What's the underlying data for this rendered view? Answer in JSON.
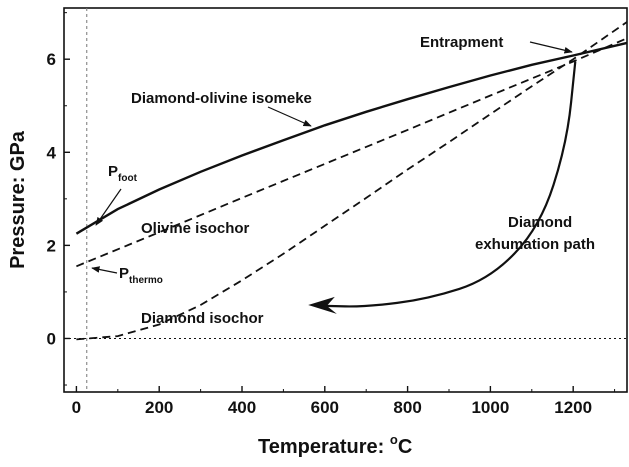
{
  "chart_data": {
    "type": "line",
    "title": "",
    "xlabel": "Temperature: ",
    "xlabel_unit_sup": "o",
    "xlabel_unit": "C",
    "ylabel": "Pressure: GPa",
    "xlim": [
      -30,
      1330
    ],
    "ylim": [
      -1.15,
      7.1
    ],
    "x_ticks": [
      0,
      200,
      400,
      600,
      800,
      1000,
      1200
    ],
    "y_ticks": [
      0,
      2,
      4,
      6
    ],
    "x_tick_labels": [
      "0",
      "200",
      "400",
      "600",
      "800",
      "1000",
      "1200"
    ],
    "y_tick_labels": [
      "0",
      "2",
      "4",
      "6"
    ],
    "grid": false,
    "series": [
      {
        "label": "Diamond-olivine isomeke",
        "style": "solid",
        "x": [
          0,
          100,
          200,
          300,
          400,
          500,
          600,
          700,
          800,
          900,
          1000,
          1100,
          1200,
          1330
        ],
        "y": [
          2.25,
          2.78,
          3.2,
          3.58,
          3.93,
          4.26,
          4.58,
          4.87,
          5.14,
          5.4,
          5.65,
          5.88,
          6.08,
          6.35
        ]
      },
      {
        "label": "Olivine isochor",
        "style": "dashed",
        "x": [
          0,
          200,
          400,
          600,
          800,
          1000,
          1200,
          1330
        ],
        "y": [
          1.55,
          2.28,
          3.02,
          3.75,
          4.48,
          5.22,
          5.95,
          6.45
        ]
      },
      {
        "label": "Diamond isochor",
        "style": "dashed",
        "x": [
          0,
          100,
          200,
          300,
          400,
          500,
          600,
          700,
          800,
          900,
          1000,
          1100,
          1200,
          1330
        ],
        "y": [
          -0.02,
          0.05,
          0.3,
          0.72,
          1.25,
          1.82,
          2.42,
          3.02,
          3.63,
          4.22,
          4.82,
          5.42,
          6.0,
          6.8
        ]
      }
    ],
    "reference_lines": [
      {
        "orientation": "horizontal",
        "value": 0,
        "style": "dotted"
      },
      {
        "orientation": "vertical",
        "value": 25,
        "style": "dashed-thin"
      }
    ],
    "annotations": [
      {
        "text": "Entrapment",
        "at": [
          1210,
          6.1
        ]
      },
      {
        "text": "Diamond-olivine isomeke",
        "at": [
          520,
          4.32
        ]
      },
      {
        "text": "P",
        "sub": "foot",
        "at": [
          30,
          2.55
        ]
      },
      {
        "text": "Olivine isochor",
        "at": [
          210,
          2.5
        ]
      },
      {
        "text": "Diamond",
        "at": [
          1075,
          2.4
        ]
      },
      {
        "text": "exhumation path",
        "at": [
          1075,
          2.0
        ]
      },
      {
        "text": "P",
        "sub": "thermo",
        "at": [
          25,
          1.58
        ]
      },
      {
        "text": "Diamond isochor",
        "at": [
          330,
          0.52
        ]
      }
    ],
    "exhumation_arrow": {
      "x": [
        1205,
        1185,
        1120,
        1000,
        850,
        700,
        600
      ],
      "y": [
        5.95,
        4.2,
        2.4,
        1.28,
        0.85,
        0.68,
        0.7
      ]
    }
  }
}
